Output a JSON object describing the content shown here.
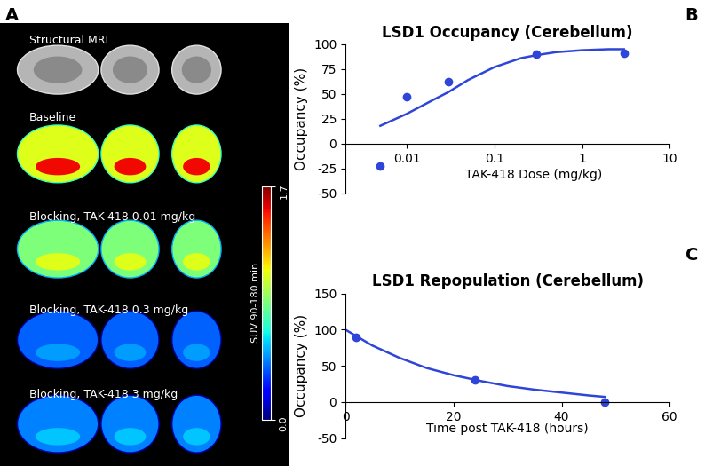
{
  "figure": {
    "panel_label": "A",
    "rows": [
      {
        "label": "Structural MRI"
      },
      {
        "label": "Baseline"
      },
      {
        "label": "Blocking, TAK-418 0.01 mg/kg"
      },
      {
        "label": "Blocking, TAK-418 0.3 mg/kg"
      },
      {
        "label": "Blocking, TAK-418 3 mg/kg"
      }
    ],
    "colorbar": {
      "label": "SUV 90-180 min",
      "range": [
        0,
        1.7
      ],
      "ticks": [
        {
          "value": 0,
          "label": "0.0"
        },
        1.7
      ]
    }
  },
  "chart_data": [
    {
      "panel_label": "B",
      "type": "scatter",
      "title": "LSD1 Occupancy (Cerebellum)",
      "x_label": "TAK-418 Dose (mg/kg)",
      "y_label": "Occupancy (%)",
      "log": "x",
      "xlim": [
        0.002,
        10
      ],
      "xticks": [
        0.01,
        0.1,
        1,
        10
      ],
      "ylim": [
        -50,
        100
      ],
      "yticks": [
        -50,
        -25,
        0,
        25,
        50,
        75,
        100
      ],
      "series": [
        {
          "type": "scatter",
          "marker": "circle",
          "color": "#2f45d8",
          "x": [
            0.005,
            0.01,
            0.03,
            0.3,
            3
          ],
          "values": [
            -22,
            47,
            62,
            90,
            91
          ]
        },
        {
          "type": "line",
          "line_style": "solid",
          "color": "#2f45d8",
          "x": [
            0.005,
            0.01,
            0.02,
            0.03,
            0.05,
            0.1,
            0.2,
            0.3,
            0.5,
            1,
            2,
            3
          ],
          "values": [
            18,
            30,
            44,
            52,
            64,
            77,
            86,
            89,
            92,
            94,
            95,
            95
          ]
        }
      ]
    },
    {
      "panel_label": "C",
      "type": "scatter",
      "title": "LSD1 Repopulation (Cerebellum)",
      "x_label": "Time post TAK-418 (hours)",
      "y_label": "Occupancy (%)",
      "xlim": [
        0,
        60
      ],
      "xticks": [
        0,
        20,
        40,
        60
      ],
      "ylim": [
        -50,
        150
      ],
      "yticks": [
        -50,
        0,
        50,
        100,
        150
      ],
      "series": [
        {
          "type": "scatter",
          "marker": "circle",
          "color": "#2f45d8",
          "x": [
            2,
            24,
            48
          ],
          "values": [
            90,
            30,
            0
          ]
        },
        {
          "type": "line",
          "line_style": "solid",
          "color": "#2f45d8",
          "x": [
            0,
            5,
            10,
            15,
            20,
            25,
            30,
            35,
            40,
            45,
            48
          ],
          "values": [
            100,
            78,
            61,
            47,
            37,
            29,
            22,
            17,
            13,
            9,
            7
          ]
        }
      ]
    }
  ]
}
